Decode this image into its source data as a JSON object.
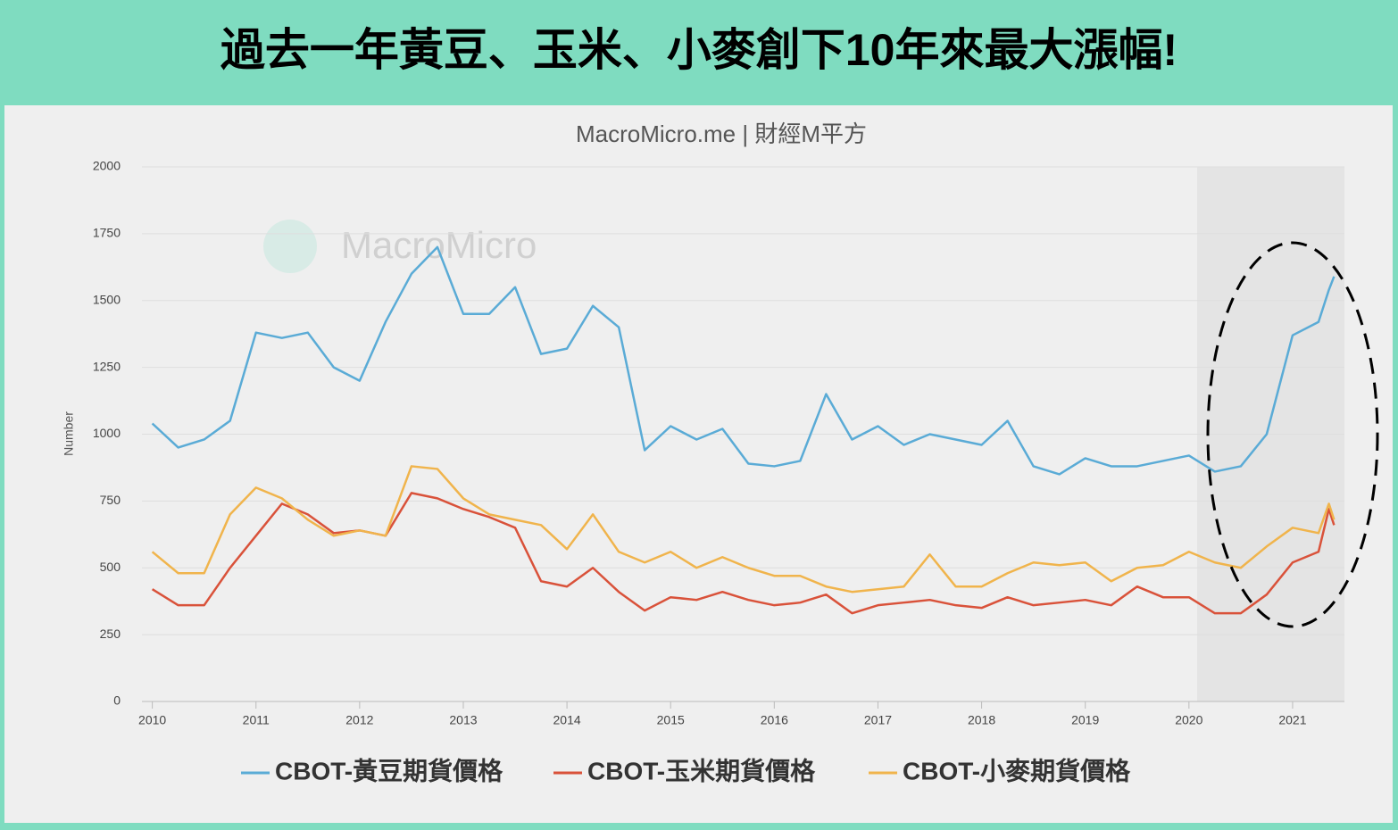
{
  "chart_data": {
    "type": "line",
    "title": "過去一年黃豆、玉米、小麥創下10年來最大漲幅!",
    "subtitle": "MacroMicro.me | 財經M平方",
    "watermark": "MacroMicro",
    "y_label": "Number",
    "xlim": [
      2009.9,
      2021.5
    ],
    "xticks": [
      2010,
      2011,
      2012,
      2013,
      2014,
      2015,
      2016,
      2017,
      2018,
      2019,
      2020,
      2021
    ],
    "ylim": [
      0,
      2000
    ],
    "yticks": [
      0,
      250,
      500,
      750,
      1000,
      1250,
      1500,
      1750,
      2000
    ],
    "grid": true,
    "x": [
      2010,
      2010.25,
      2010.5,
      2010.75,
      2011,
      2011.25,
      2011.5,
      2011.75,
      2012,
      2012.25,
      2012.5,
      2012.75,
      2013,
      2013.25,
      2013.5,
      2013.75,
      2014,
      2014.25,
      2014.5,
      2014.75,
      2015,
      2015.25,
      2015.5,
      2015.75,
      2016,
      2016.25,
      2016.5,
      2016.75,
      2017,
      2017.25,
      2017.5,
      2017.75,
      2018,
      2018.25,
      2018.5,
      2018.75,
      2019,
      2019.25,
      2019.5,
      2019.75,
      2020,
      2020.25,
      2020.5,
      2020.75,
      2021,
      2021.25,
      2021.35,
      2021.4
    ],
    "series": [
      {
        "name": "CBOT-黃豆期貨價格",
        "color": "#5aabd6",
        "values": [
          1040,
          950,
          980,
          1050,
          1380,
          1360,
          1380,
          1250,
          1200,
          1420,
          1600,
          1700,
          1450,
          1450,
          1550,
          1300,
          1320,
          1480,
          1400,
          940,
          1030,
          980,
          1020,
          890,
          880,
          900,
          1150,
          980,
          1030,
          960,
          1000,
          980,
          960,
          1050,
          880,
          850,
          910,
          880,
          880,
          900,
          920,
          860,
          880,
          1000,
          1370,
          1420,
          1540,
          1590
        ]
      },
      {
        "name": "CBOT-玉米期貨價格",
        "color": "#d9523a",
        "values": [
          420,
          360,
          360,
          500,
          620,
          740,
          700,
          630,
          640,
          620,
          780,
          760,
          720,
          690,
          650,
          450,
          430,
          500,
          410,
          340,
          390,
          380,
          410,
          380,
          360,
          370,
          400,
          330,
          360,
          370,
          380,
          360,
          350,
          390,
          360,
          370,
          380,
          360,
          430,
          390,
          390,
          330,
          330,
          400,
          520,
          560,
          720,
          660
        ]
      },
      {
        "name": "CBOT-小麥期貨價格",
        "color": "#f0b44c",
        "values": [
          560,
          480,
          480,
          700,
          800,
          760,
          680,
          620,
          640,
          620,
          880,
          870,
          760,
          700,
          680,
          660,
          570,
          700,
          560,
          520,
          560,
          500,
          540,
          500,
          470,
          470,
          430,
          410,
          420,
          430,
          550,
          430,
          430,
          480,
          520,
          510,
          520,
          450,
          500,
          510,
          560,
          520,
          500,
          580,
          650,
          630,
          740,
          680
        ]
      }
    ]
  }
}
